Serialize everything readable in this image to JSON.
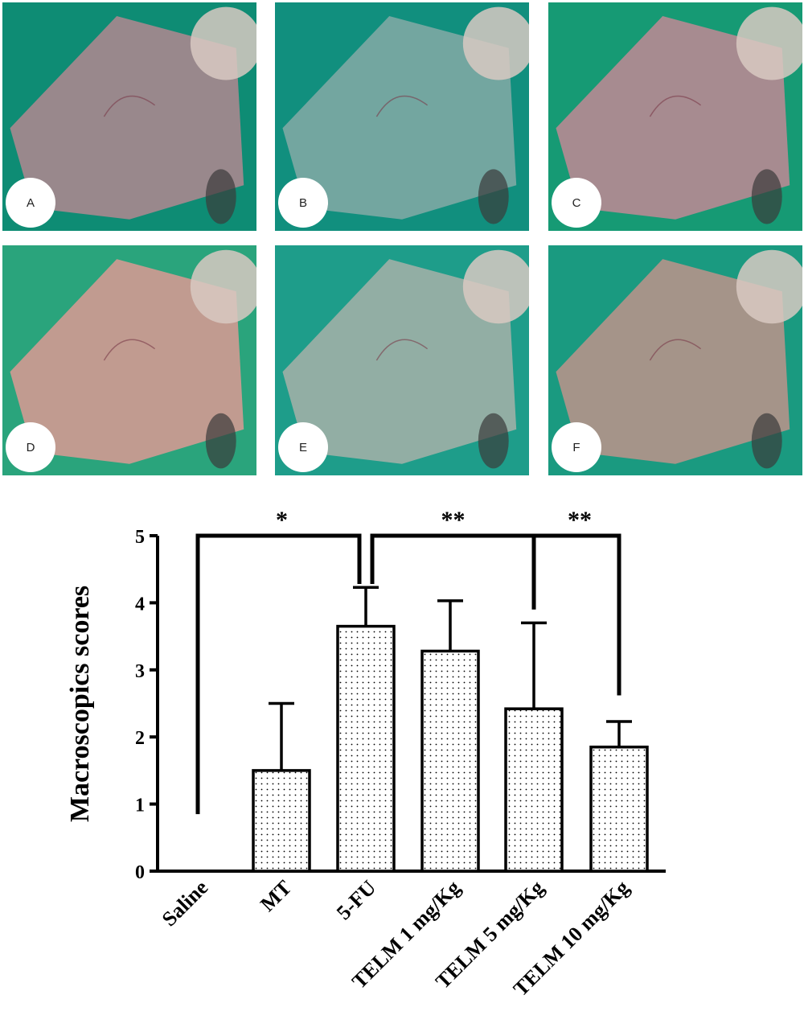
{
  "panels": [
    {
      "label": "A",
      "bg": "#0e8c74",
      "tissue": "#a9878f"
    },
    {
      "label": "B",
      "bg": "#118f7e",
      "tissue": "#7ea9a4"
    },
    {
      "label": "C",
      "bg": "#169a74",
      "tissue": "#b78a93"
    },
    {
      "label": "D",
      "bg": "#2aa47c",
      "tissue": "#d19a92"
    },
    {
      "label": "E",
      "bg": "#1e9d8a",
      "tissue": "#9fb0a6"
    },
    {
      "label": "F",
      "bg": "#1a9a80",
      "tissue": "#b59389"
    }
  ],
  "chart_data": {
    "type": "bar",
    "categories": [
      "Saline",
      "MT",
      "5-FU",
      "TELM 1 mg/Kg",
      "TELM 5 mg/Kg",
      "TELM 10 mg/Kg"
    ],
    "values": [
      0,
      1.5,
      3.65,
      3.28,
      2.42,
      1.85
    ],
    "errors": [
      0,
      1.0,
      0.58,
      0.75,
      1.28,
      0.38
    ],
    "ylabel": "Macroscopics scores",
    "ylim": [
      0,
      5
    ],
    "yticks": [
      0,
      1,
      2,
      3,
      4,
      5
    ],
    "grid": false,
    "bar_fill": "dotted",
    "significance": [
      {
        "label": "*",
        "groups": [
          "Saline",
          "5-FU"
        ]
      },
      {
        "label": "**",
        "groups": [
          "5-FU",
          "TELM 5 mg/Kg"
        ]
      },
      {
        "label": "**",
        "groups": [
          "TELM 5 mg/Kg",
          "TELM 10 mg/Kg"
        ]
      }
    ]
  }
}
